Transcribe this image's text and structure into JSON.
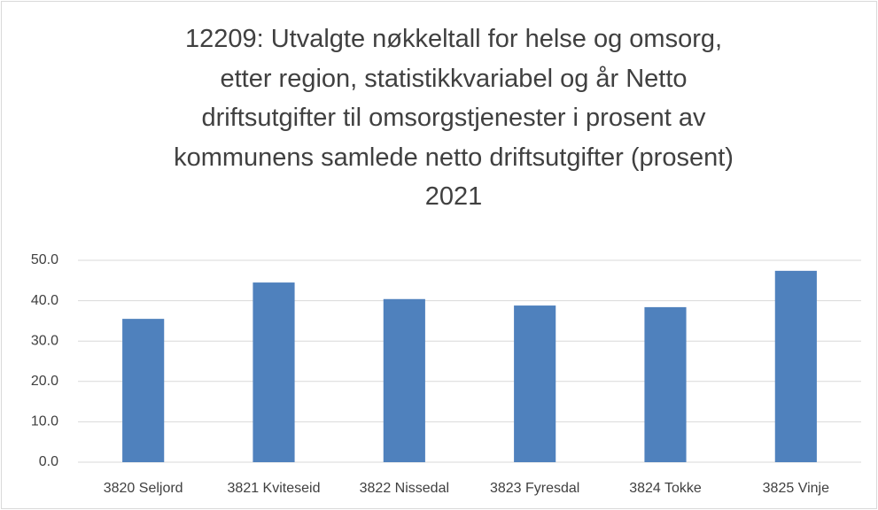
{
  "chart_data": {
    "type": "bar",
    "title": "12209: Utvalgte nøkkeltall for helse og omsorg,\netter region, statistikkvariabel og år Netto\ndriftsutgifter til omsorgstjenester i prosent av\nkommunens samlede netto driftsutgifter (prosent)\n2021",
    "categories": [
      "3820 Seljord",
      "3821 Kviteseid",
      "3822 Nissedal",
      "3823 Fyresdal",
      "3824 Tokke",
      "3825 Vinje"
    ],
    "values": [
      35.5,
      44.5,
      40.4,
      38.8,
      38.4,
      47.4
    ],
    "color": "#4f81bd",
    "ylim": [
      0,
      50
    ],
    "yticks": [
      {
        "value": 0,
        "label": "0.0"
      },
      {
        "value": 10,
        "label": "10.0"
      },
      {
        "value": 20,
        "label": "20.0"
      },
      {
        "value": 30,
        "label": "30.0"
      },
      {
        "value": 40,
        "label": "40.0"
      },
      {
        "value": 50,
        "label": "50.0"
      }
    ],
    "grid": true
  }
}
